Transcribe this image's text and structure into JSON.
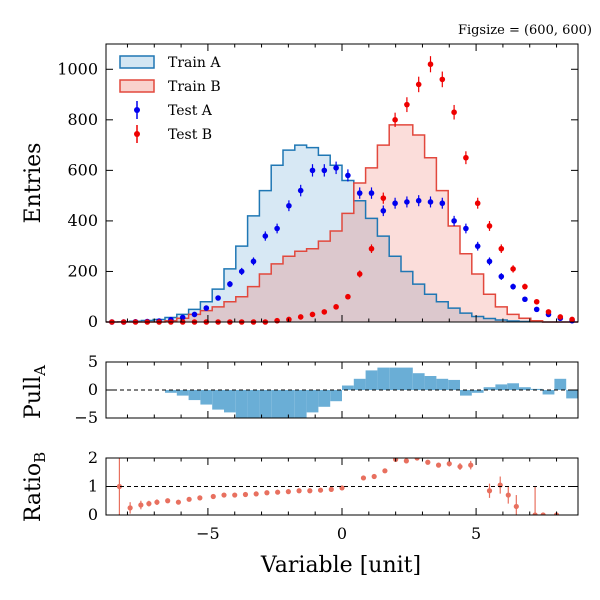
{
  "figsize_text": "Figsize = (600, 600)",
  "colors": {
    "train_a": "#1f77b4",
    "train_a_fill": "#d3e6f3",
    "train_b": "#e2483d",
    "train_b_fill": "#f9d2cd",
    "overlap_fill": "#d9c6cc",
    "test_a": "#0000ee",
    "test_b": "#ee0000",
    "pull_bar": "#6aaed6",
    "ratio": "#e8705f"
  },
  "chart_data": [
    {
      "panel": "main",
      "type": "histogram",
      "ylabel": "Entries",
      "xlim": [
        -8.8,
        8.8
      ],
      "ylim": [
        0,
        1100
      ],
      "yticks": [
        0,
        200,
        400,
        600,
        800,
        1000
      ],
      "legend": {
        "placement": "top-left",
        "entries": [
          "Train A",
          "Train B",
          "Test A",
          "Test B"
        ]
      },
      "bins": {
        "start": -8.8,
        "width": 0.44,
        "count": 40
      },
      "series": [
        {
          "name": "Train A",
          "kind": "step-fill",
          "values": [
            0,
            1,
            3,
            6,
            10,
            18,
            30,
            50,
            80,
            130,
            210,
            300,
            420,
            520,
            620,
            680,
            700,
            690,
            660,
            620,
            560,
            480,
            410,
            340,
            260,
            200,
            150,
            110,
            80,
            55,
            35,
            22,
            14,
            8,
            4,
            2,
            1,
            0,
            0,
            0
          ]
        },
        {
          "name": "Train B",
          "kind": "step-fill",
          "values": [
            0,
            0,
            0,
            0,
            0,
            5,
            15,
            30,
            45,
            60,
            80,
            100,
            140,
            190,
            230,
            260,
            280,
            290,
            320,
            360,
            430,
            550,
            610,
            700,
            780,
            780,
            740,
            650,
            520,
            380,
            270,
            190,
            110,
            60,
            30,
            15,
            5,
            0,
            0,
            0
          ]
        },
        {
          "name": "Test A",
          "kind": "errorbar",
          "values": [
            0,
            0,
            1,
            2,
            4,
            9,
            18,
            30,
            55,
            95,
            150,
            200,
            240,
            340,
            370,
            460,
            520,
            600,
            600,
            610,
            580,
            510,
            510,
            440,
            470,
            475,
            480,
            475,
            470,
            400,
            370,
            300,
            240,
            180,
            140,
            90,
            50,
            30,
            15,
            5
          ]
        },
        {
          "name": "Test B",
          "kind": "errorbar",
          "values": [
            0,
            0,
            0,
            0,
            0,
            0,
            0,
            0,
            0,
            0,
            0,
            0,
            0,
            0,
            5,
            10,
            20,
            30,
            40,
            60,
            100,
            190,
            290,
            490,
            800,
            860,
            940,
            1020,
            960,
            830,
            650,
            470,
            380,
            290,
            210,
            140,
            80,
            40,
            20,
            10
          ]
        }
      ]
    },
    {
      "panel": "pull",
      "type": "bar",
      "ylabel_main": "Pull",
      "ylabel_sub": "A",
      "ylim": [
        -5,
        5
      ],
      "yticks": [
        -5,
        0,
        5
      ],
      "reference_line": 0,
      "values": [
        0,
        0,
        0,
        0,
        0,
        -0.5,
        -1,
        -1.8,
        -2.6,
        -3.5,
        -4.0,
        -5.0,
        -5.0,
        -5.0,
        -5.0,
        -5.0,
        -5.0,
        -4.0,
        -3.0,
        -2.0,
        0.8,
        2.0,
        3.5,
        4.0,
        4.0,
        4.0,
        3.0,
        2.5,
        2.0,
        1.8,
        -1.0,
        -0.5,
        0.5,
        1.0,
        1.2,
        0.5,
        0.2,
        -0.8,
        2.0,
        -1.5
      ]
    },
    {
      "panel": "ratio",
      "type": "errorbar",
      "ylabel_main": "Ratio",
      "ylabel_sub": "B",
      "ylim": [
        0,
        2
      ],
      "yticks": [
        0,
        1,
        2
      ],
      "reference_line": 1,
      "xlabel": "Variable [unit]",
      "xticks": [
        -5,
        0,
        5
      ],
      "points": [
        {
          "x": -8.3,
          "y": 1.0,
          "err": 1.0
        },
        {
          "x": -7.9,
          "y": 0.25,
          "err": 0.2
        },
        {
          "x": -7.5,
          "y": 0.35,
          "err": 0.15
        },
        {
          "x": -7.2,
          "y": 0.4,
          "err": 0.1
        },
        {
          "x": -6.9,
          "y": 0.45,
          "err": 0.1
        },
        {
          "x": -6.5,
          "y": 0.5,
          "err": 0.08
        },
        {
          "x": -6.1,
          "y": 0.45,
          "err": 0.08
        },
        {
          "x": -5.7,
          "y": 0.55,
          "err": 0.06
        },
        {
          "x": -5.3,
          "y": 0.6,
          "err": 0.05
        },
        {
          "x": -4.8,
          "y": 0.65,
          "err": 0.05
        },
        {
          "x": -4.4,
          "y": 0.7,
          "err": 0.04
        },
        {
          "x": -4.0,
          "y": 0.7,
          "err": 0.04
        },
        {
          "x": -3.6,
          "y": 0.72,
          "err": 0.04
        },
        {
          "x": -3.2,
          "y": 0.74,
          "err": 0.04
        },
        {
          "x": -2.8,
          "y": 0.78,
          "err": 0.04
        },
        {
          "x": -2.4,
          "y": 0.8,
          "err": 0.04
        },
        {
          "x": -2.0,
          "y": 0.82,
          "err": 0.04
        },
        {
          "x": -1.6,
          "y": 0.85,
          "err": 0.04
        },
        {
          "x": -1.2,
          "y": 0.85,
          "err": 0.04
        },
        {
          "x": -0.8,
          "y": 0.87,
          "err": 0.04
        },
        {
          "x": -0.4,
          "y": 0.9,
          "err": 0.04
        },
        {
          "x": 0.0,
          "y": 0.95,
          "err": 0.04
        },
        {
          "x": 0.8,
          "y": 1.3,
          "err": 0.05
        },
        {
          "x": 1.2,
          "y": 1.35,
          "err": 0.05
        },
        {
          "x": 1.6,
          "y": 1.55,
          "err": 0.05
        },
        {
          "x": 2.0,
          "y": 1.95,
          "err": 0.05
        },
        {
          "x": 2.4,
          "y": 1.9,
          "err": 0.05
        },
        {
          "x": 2.8,
          "y": 2.0,
          "err": 0.06
        },
        {
          "x": 3.2,
          "y": 1.85,
          "err": 0.08
        },
        {
          "x": 3.6,
          "y": 1.75,
          "err": 0.08
        },
        {
          "x": 4.0,
          "y": 1.8,
          "err": 0.1
        },
        {
          "x": 4.4,
          "y": 1.7,
          "err": 0.12
        },
        {
          "x": 4.8,
          "y": 1.75,
          "err": 0.15
        },
        {
          "x": 5.5,
          "y": 0.85,
          "err": 0.25
        },
        {
          "x": 5.9,
          "y": 1.05,
          "err": 0.3
        },
        {
          "x": 6.2,
          "y": 0.7,
          "err": 0.3
        },
        {
          "x": 6.5,
          "y": 0.3,
          "err": 0.4
        },
        {
          "x": 7.2,
          "y": 0.0,
          "err": 1.0
        },
        {
          "x": 7.5,
          "y": 0.0,
          "err": 0.0
        },
        {
          "x": 8.0,
          "y": 0.0,
          "err": 0.0
        }
      ]
    }
  ]
}
